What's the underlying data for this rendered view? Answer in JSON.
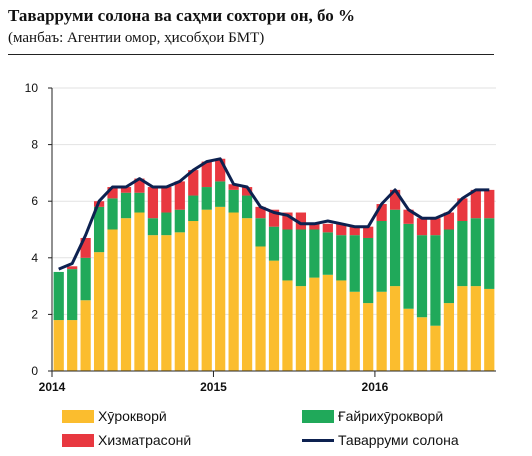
{
  "header": {
    "title": "Таварруми солона ва саҳми сохтори он, бо %",
    "subtitle": "(манбаъ: Агентии омор, ҳисобҳои БМТ)"
  },
  "legend": {
    "food": "Хӯрокворӣ",
    "nonfood": "Ғайрихӯрокворӣ",
    "services": "Хизматрасонӣ",
    "inflation": "Таварруми солона"
  },
  "chart_data": {
    "type": "bar",
    "stacked": true,
    "title": "Таварруми солона ва саҳми сохтори он, бо %",
    "subtitle": "(манбаъ: Агентии омор, ҳисобҳои БМТ)",
    "ylim": [
      0,
      10
    ],
    "yticks": [
      "0",
      "2",
      "4",
      "6",
      "8",
      "10"
    ],
    "xticks": [
      {
        "label": "2014",
        "index": 0
      },
      {
        "label": "2015",
        "index": 12
      },
      {
        "label": "2016",
        "index": 24
      }
    ],
    "categories": [
      "2014-01",
      "2014-02",
      "2014-03",
      "2014-04",
      "2014-05",
      "2014-06",
      "2014-07",
      "2014-08",
      "2014-09",
      "2014-10",
      "2014-11",
      "2014-12",
      "2015-01",
      "2015-02",
      "2015-03",
      "2015-04",
      "2015-05",
      "2015-06",
      "2015-07",
      "2015-08",
      "2015-09",
      "2015-10",
      "2015-11",
      "2015-12",
      "2016-01",
      "2016-02",
      "2016-03",
      "2016-04",
      "2016-05",
      "2016-06",
      "2016-07",
      "2016-08",
      "2016-09"
    ],
    "series": [
      {
        "name": "Хӯрокворӣ",
        "color": "#fbbd2e",
        "values": [
          1.8,
          1.8,
          2.5,
          4.2,
          5.0,
          5.4,
          5.6,
          4.8,
          4.8,
          4.9,
          5.3,
          5.7,
          5.8,
          5.6,
          5.4,
          4.4,
          3.9,
          3.2,
          3.0,
          3.3,
          3.4,
          3.2,
          2.8,
          2.4,
          2.8,
          3.0,
          2.2,
          1.9,
          1.6,
          2.4,
          3.0,
          3.0,
          2.9
        ]
      },
      {
        "name": "Ғайрихӯрокворӣ",
        "color": "#20a95a",
        "values": [
          1.7,
          1.8,
          1.5,
          1.6,
          1.1,
          0.9,
          0.7,
          0.6,
          0.8,
          0.8,
          0.9,
          0.8,
          0.9,
          0.8,
          0.8,
          1.0,
          1.2,
          1.8,
          2.0,
          1.7,
          1.5,
          1.6,
          2.0,
          2.3,
          2.5,
          2.7,
          3.0,
          2.9,
          3.2,
          2.6,
          2.3,
          2.4,
          2.5
        ]
      },
      {
        "name": "Хизматрасонӣ",
        "color": "#e83840",
        "values": [
          0.0,
          0.1,
          0.7,
          0.2,
          0.4,
          0.2,
          0.5,
          1.1,
          0.9,
          1.0,
          0.9,
          0.9,
          0.8,
          0.2,
          0.3,
          0.4,
          0.6,
          0.6,
          0.6,
          0.2,
          0.3,
          0.4,
          0.3,
          0.4,
          0.6,
          0.7,
          0.5,
          0.6,
          0.6,
          0.6,
          0.8,
          1.0,
          1.0
        ]
      },
      {
        "name": "Таварруми солона",
        "type": "line",
        "color": "#0d2150",
        "values": [
          3.6,
          3.8,
          4.8,
          6.0,
          6.5,
          6.5,
          6.8,
          6.5,
          6.5,
          6.7,
          7.1,
          7.4,
          7.5,
          6.6,
          6.5,
          5.8,
          5.6,
          5.5,
          5.2,
          5.2,
          5.3,
          5.2,
          5.1,
          5.1,
          5.9,
          6.4,
          5.7,
          5.4,
          5.4,
          5.6,
          6.1,
          6.4,
          6.4
        ]
      }
    ]
  }
}
